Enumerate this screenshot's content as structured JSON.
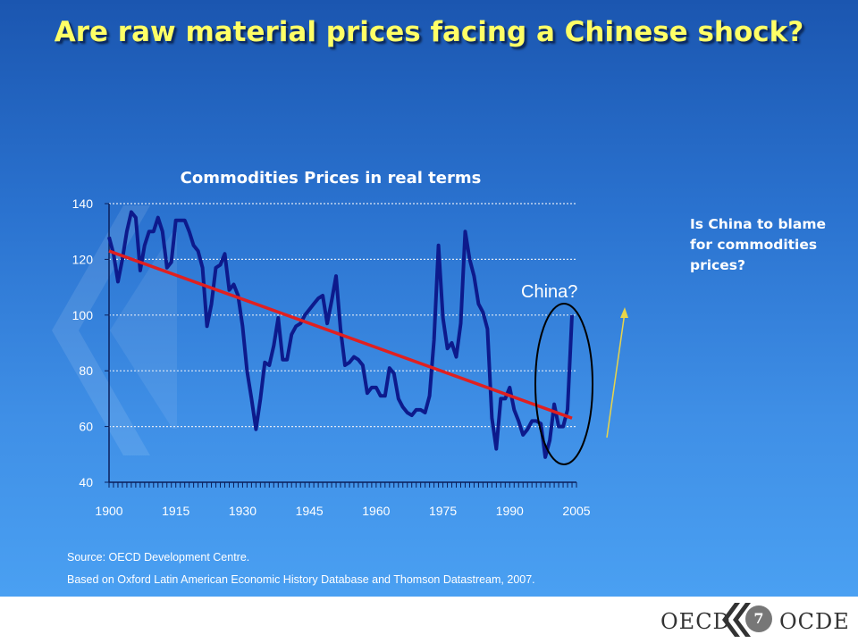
{
  "slide": {
    "title": "Are raw material prices facing a Chinese shock?",
    "sidenote": "Is China to blame for commodities prices?",
    "source_line1": "Source: OECD Development Centre.",
    "source_line2": "Based on Oxford Latin American Economic History Database and Thomson Datastream, 2007.",
    "annotation": "China?",
    "page_number": "7"
  },
  "footer": {
    "logo_left": "OECD",
    "logo_right": "OCDE"
  },
  "colors": {
    "background_top": "#1b56b0",
    "background_bottom": "#4aa0f2",
    "title": "#ffff66",
    "series_line": "#0d1a8c",
    "trend_line": "#e02020",
    "ellipse": "#000000",
    "arrow": "#e8d44a"
  },
  "chart_data": {
    "type": "line",
    "title": "Commodities Prices in real terms",
    "xlabel": "",
    "ylabel": "",
    "xlim": [
      1900,
      2005
    ],
    "ylim": [
      40,
      140
    ],
    "x_ticks": [
      "1900",
      "1915",
      "1930",
      "1945",
      "1960",
      "1975",
      "1990",
      "2005"
    ],
    "y_ticks": [
      "40",
      "60",
      "80",
      "100",
      "120",
      "140"
    ],
    "grid": "horizontal dotted",
    "series": [
      {
        "name": "",
        "x": [
          1900,
          1901,
          1902,
          1903,
          1904,
          1905,
          1906,
          1907,
          1908,
          1909,
          1910,
          1911,
          1912,
          1913,
          1914,
          1915,
          1916,
          1917,
          1918,
          1919,
          1920,
          1921,
          1922,
          1923,
          1924,
          1925,
          1926,
          1927,
          1928,
          1929,
          1930,
          1931,
          1932,
          1933,
          1934,
          1935,
          1936,
          1937,
          1938,
          1939,
          1940,
          1941,
          1942,
          1943,
          1944,
          1945,
          1946,
          1947,
          1948,
          1949,
          1950,
          1951,
          1952,
          1953,
          1954,
          1955,
          1956,
          1957,
          1958,
          1959,
          1960,
          1961,
          1962,
          1963,
          1964,
          1965,
          1966,
          1967,
          1968,
          1969,
          1970,
          1971,
          1972,
          1973,
          1974,
          1975,
          1976,
          1977,
          1978,
          1979,
          1980,
          1981,
          1982,
          1983,
          1984,
          1985,
          1986,
          1987,
          1988,
          1989,
          1990,
          1991,
          1992,
          1993,
          1994,
          1995,
          1996,
          1997,
          1998,
          1999,
          2000,
          2001,
          2002,
          2003,
          2004
        ],
        "y": [
          128,
          122,
          112,
          120,
          130,
          137,
          135,
          116,
          125,
          130,
          130,
          135,
          130,
          117,
          119,
          134,
          134,
          134,
          130,
          125,
          123,
          117,
          96,
          104,
          117,
          118,
          122,
          109,
          111,
          107,
          96,
          80,
          70,
          59,
          70,
          83,
          82,
          89,
          99,
          84,
          84,
          93,
          96,
          97,
          100,
          102,
          104,
          106,
          107,
          97,
          105,
          114,
          95,
          82,
          83,
          85,
          84,
          82,
          72,
          74,
          74,
          71,
          71,
          81,
          79,
          70,
          67,
          65,
          64,
          66,
          66,
          65,
          71,
          91,
          125,
          99,
          88,
          90,
          85,
          97,
          130,
          120,
          114,
          104,
          101,
          95,
          63,
          52,
          70,
          70,
          74,
          66,
          62,
          57,
          59,
          62,
          62,
          61,
          49,
          55,
          68,
          60,
          60,
          66,
          100
        ]
      }
    ],
    "trend": {
      "x": [
        1900,
        2004
      ],
      "y": [
        123,
        63
      ]
    },
    "annotation": "China?"
  }
}
